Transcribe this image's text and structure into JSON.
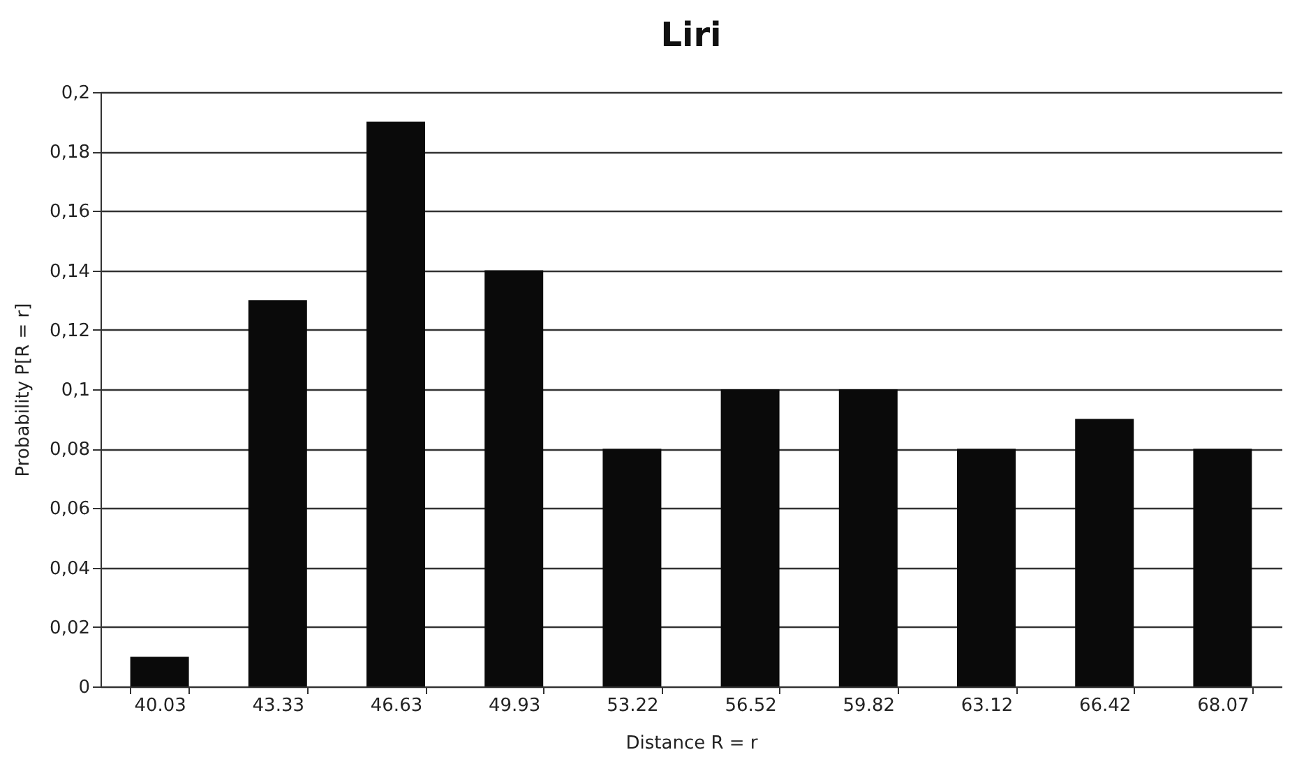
{
  "chart_data": {
    "type": "bar",
    "title": "Liri",
    "xlabel": "Distance R = r",
    "ylabel": "Probability P[R = r]",
    "categories": [
      "40.03",
      "43.33",
      "46.63",
      "49.93",
      "53.22",
      "56.52",
      "59.82",
      "63.12",
      "66.42",
      "68.07"
    ],
    "values": [
      0.01,
      0.13,
      0.19,
      0.14,
      0.08,
      0.1,
      0.1,
      0.08,
      0.09,
      0.08
    ],
    "color": "#0a0a0a",
    "ylim": [
      0,
      0.2
    ],
    "yticks": [
      0,
      {
        "value": 0.02,
        "label": "0,02"
      },
      {
        "value": 0.04,
        "label": "0,04"
      },
      {
        "value": 0.06,
        "label": "0,06"
      },
      {
        "value": 0.08,
        "label": "0,08"
      },
      {
        "value": 0.1,
        "label": "0,1"
      },
      {
        "value": 0.12,
        "label": "0,12"
      },
      {
        "value": 0.14,
        "label": "0,14"
      },
      {
        "value": 0.16,
        "label": "0,16"
      },
      {
        "value": 0.18,
        "label": "0,18"
      },
      {
        "value": 0.2,
        "label": "0,2"
      }
    ],
    "grid": "y"
  }
}
